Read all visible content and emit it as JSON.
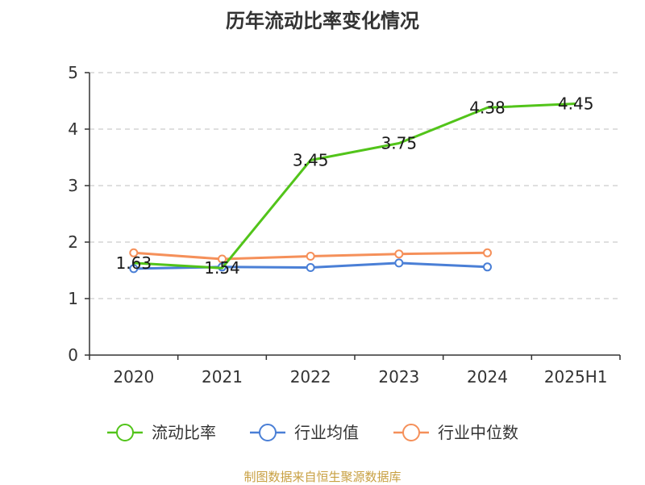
{
  "title": "历年流动比率变化情况",
  "source": "制图数据来自恒生聚源数据库",
  "colors": {
    "current_ratio": "#52c41a",
    "industry_avg": "#4a7fd6",
    "industry_median": "#f5905a",
    "grid": "#cccccc",
    "axis": "#333333"
  },
  "chart_data": {
    "type": "line",
    "title": "历年流动比率变化情况",
    "xlabel": "",
    "ylabel": "",
    "categories": [
      "2020",
      "2021",
      "2022",
      "2023",
      "2024",
      "2025H1"
    ],
    "ylim": [
      0,
      5
    ],
    "yticks": [
      0,
      1,
      2,
      3,
      4,
      5
    ],
    "grid": true,
    "legend_position": "bottom",
    "series": [
      {
        "name": "流动比率",
        "colorKey": "current_ratio",
        "values": [
          1.63,
          1.54,
          3.45,
          3.75,
          4.38,
          4.45
        ],
        "labels": [
          "1.63",
          "1.54",
          "3.45",
          "3.75",
          "4.38",
          "4.45"
        ],
        "markers": false
      },
      {
        "name": "行业均值",
        "colorKey": "industry_avg",
        "values": [
          1.53,
          1.56,
          1.55,
          1.63,
          1.56,
          null
        ],
        "markers": true
      },
      {
        "name": "行业中位数",
        "colorKey": "industry_median",
        "values": [
          1.81,
          1.7,
          1.75,
          1.79,
          1.81,
          null
        ],
        "markers": true
      }
    ]
  }
}
